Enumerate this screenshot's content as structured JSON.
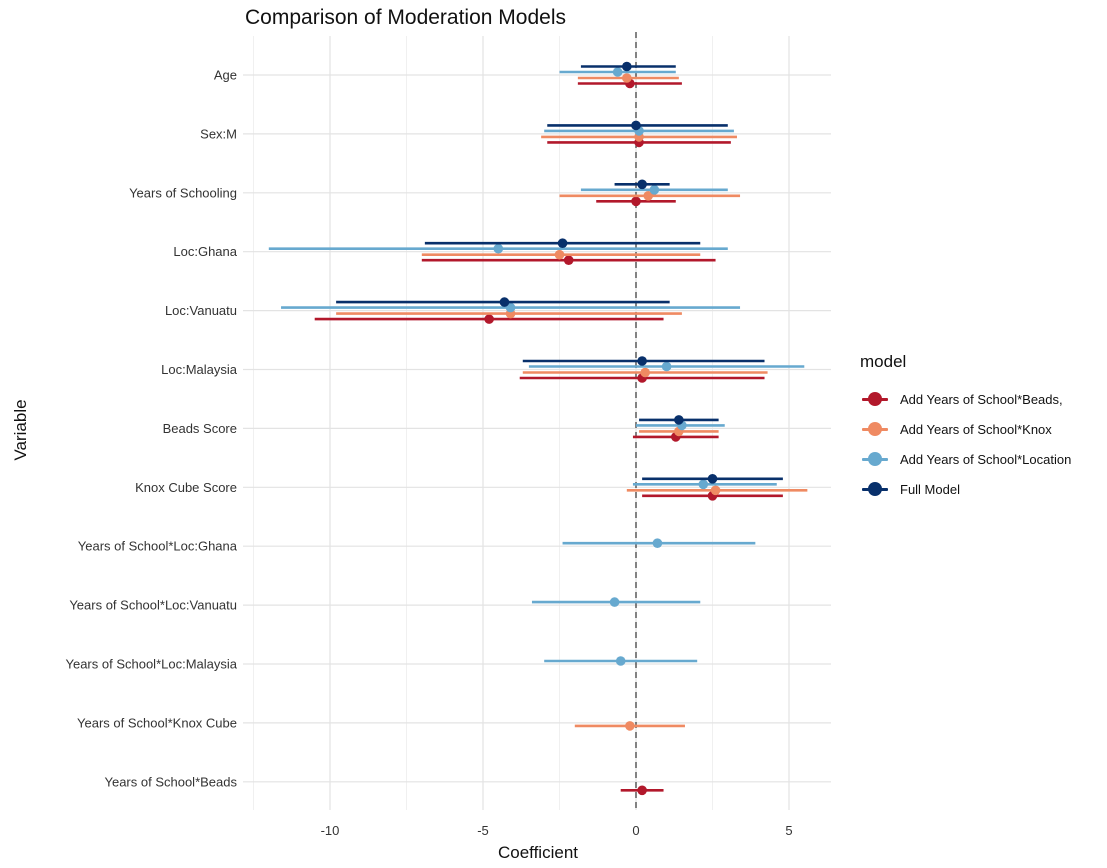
{
  "chart_data": {
    "type": "scatter",
    "title": "Comparison of Moderation Models",
    "xlabel": "Coefficient",
    "ylabel": "Variable",
    "xlim": [
      -12.6,
      6.3
    ],
    "x_ticks": [
      -10,
      -5,
      0,
      5
    ],
    "reference_line": {
      "x": 0,
      "style": "dashed"
    },
    "legend_title": "model",
    "legend_position": "right",
    "grid": true,
    "categories": [
      "Age",
      "Sex:M",
      "Years of Schooling",
      "Loc:Ghana",
      "Loc:Vanuatu",
      "Loc:Malaysia",
      "Beads Score",
      "Knox Cube Score",
      "Years of School*Loc:Ghana",
      "Years of School*Loc:Vanuatu",
      "Years of School*Loc:Malaysia",
      "Years of School*Knox Cube",
      "Years of School*Beads"
    ],
    "series": [
      {
        "name": "Add Years of School*Beads,",
        "color": "#b2182b",
        "points": [
          {
            "variable": "Age",
            "estimate": -0.2,
            "lower": -1.9,
            "upper": 1.5
          },
          {
            "variable": "Sex:M",
            "estimate": 0.1,
            "lower": -2.9,
            "upper": 3.1
          },
          {
            "variable": "Years of Schooling",
            "estimate": 0.0,
            "lower": -1.3,
            "upper": 1.3
          },
          {
            "variable": "Loc:Ghana",
            "estimate": -2.2,
            "lower": -7.0,
            "upper": 2.6
          },
          {
            "variable": "Loc:Vanuatu",
            "estimate": -4.8,
            "lower": -10.5,
            "upper": 0.9
          },
          {
            "variable": "Loc:Malaysia",
            "estimate": 0.2,
            "lower": -3.8,
            "upper": 4.2
          },
          {
            "variable": "Beads Score",
            "estimate": 1.3,
            "lower": -0.1,
            "upper": 2.7
          },
          {
            "variable": "Knox Cube Score",
            "estimate": 2.5,
            "lower": 0.2,
            "upper": 4.8
          },
          {
            "variable": "Years of School*Beads",
            "estimate": 0.2,
            "lower": -0.5,
            "upper": 0.9
          }
        ]
      },
      {
        "name": "Add Years of School*Knox",
        "color": "#ef8a62",
        "points": [
          {
            "variable": "Age",
            "estimate": -0.3,
            "lower": -1.9,
            "upper": 1.4
          },
          {
            "variable": "Sex:M",
            "estimate": 0.1,
            "lower": -3.1,
            "upper": 3.3
          },
          {
            "variable": "Years of Schooling",
            "estimate": 0.4,
            "lower": -2.5,
            "upper": 3.4
          },
          {
            "variable": "Loc:Ghana",
            "estimate": -2.5,
            "lower": -7.0,
            "upper": 2.1
          },
          {
            "variable": "Loc:Vanuatu",
            "estimate": -4.1,
            "lower": -9.8,
            "upper": 1.5
          },
          {
            "variable": "Loc:Malaysia",
            "estimate": 0.3,
            "lower": -3.7,
            "upper": 4.3
          },
          {
            "variable": "Beads Score",
            "estimate": 1.4,
            "lower": 0.1,
            "upper": 2.7
          },
          {
            "variable": "Knox Cube Score",
            "estimate": 2.6,
            "lower": -0.3,
            "upper": 5.6
          },
          {
            "variable": "Years of School*Knox Cube",
            "estimate": -0.2,
            "lower": -2.0,
            "upper": 1.6
          }
        ]
      },
      {
        "name": "Add Years of School*Location",
        "color": "#67a9cf",
        "points": [
          {
            "variable": "Age",
            "estimate": -0.6,
            "lower": -2.5,
            "upper": 1.3
          },
          {
            "variable": "Sex:M",
            "estimate": 0.1,
            "lower": -3.0,
            "upper": 3.2
          },
          {
            "variable": "Years of Schooling",
            "estimate": 0.6,
            "lower": -1.8,
            "upper": 3.0
          },
          {
            "variable": "Loc:Ghana",
            "estimate": -4.5,
            "lower": -12.0,
            "upper": 3.0
          },
          {
            "variable": "Loc:Vanuatu",
            "estimate": -4.1,
            "lower": -11.6,
            "upper": 3.4
          },
          {
            "variable": "Loc:Malaysia",
            "estimate": 1.0,
            "lower": -3.5,
            "upper": 5.5
          },
          {
            "variable": "Beads Score",
            "estimate": 1.5,
            "lower": 0.0,
            "upper": 2.9
          },
          {
            "variable": "Knox Cube Score",
            "estimate": 2.2,
            "lower": -0.1,
            "upper": 4.6
          },
          {
            "variable": "Years of School*Loc:Ghana",
            "estimate": 0.7,
            "lower": -2.4,
            "upper": 3.9
          },
          {
            "variable": "Years of School*Loc:Vanuatu",
            "estimate": -0.7,
            "lower": -3.4,
            "upper": 2.1
          },
          {
            "variable": "Years of School*Loc:Malaysia",
            "estimate": -0.5,
            "lower": -3.0,
            "upper": 2.0
          }
        ]
      },
      {
        "name": "Full Model",
        "color": "#08306b",
        "points": [
          {
            "variable": "Age",
            "estimate": -0.3,
            "lower": -1.8,
            "upper": 1.3
          },
          {
            "variable": "Sex:M",
            "estimate": 0.0,
            "lower": -2.9,
            "upper": 3.0
          },
          {
            "variable": "Years of Schooling",
            "estimate": 0.2,
            "lower": -0.7,
            "upper": 1.1
          },
          {
            "variable": "Loc:Ghana",
            "estimate": -2.4,
            "lower": -6.9,
            "upper": 2.1
          },
          {
            "variable": "Loc:Vanuatu",
            "estimate": -4.3,
            "lower": -9.8,
            "upper": 1.1
          },
          {
            "variable": "Loc:Malaysia",
            "estimate": 0.2,
            "lower": -3.7,
            "upper": 4.2
          },
          {
            "variable": "Beads Score",
            "estimate": 1.4,
            "lower": 0.1,
            "upper": 2.7
          },
          {
            "variable": "Knox Cube Score",
            "estimate": 2.5,
            "lower": 0.2,
            "upper": 4.8
          }
        ]
      }
    ]
  }
}
